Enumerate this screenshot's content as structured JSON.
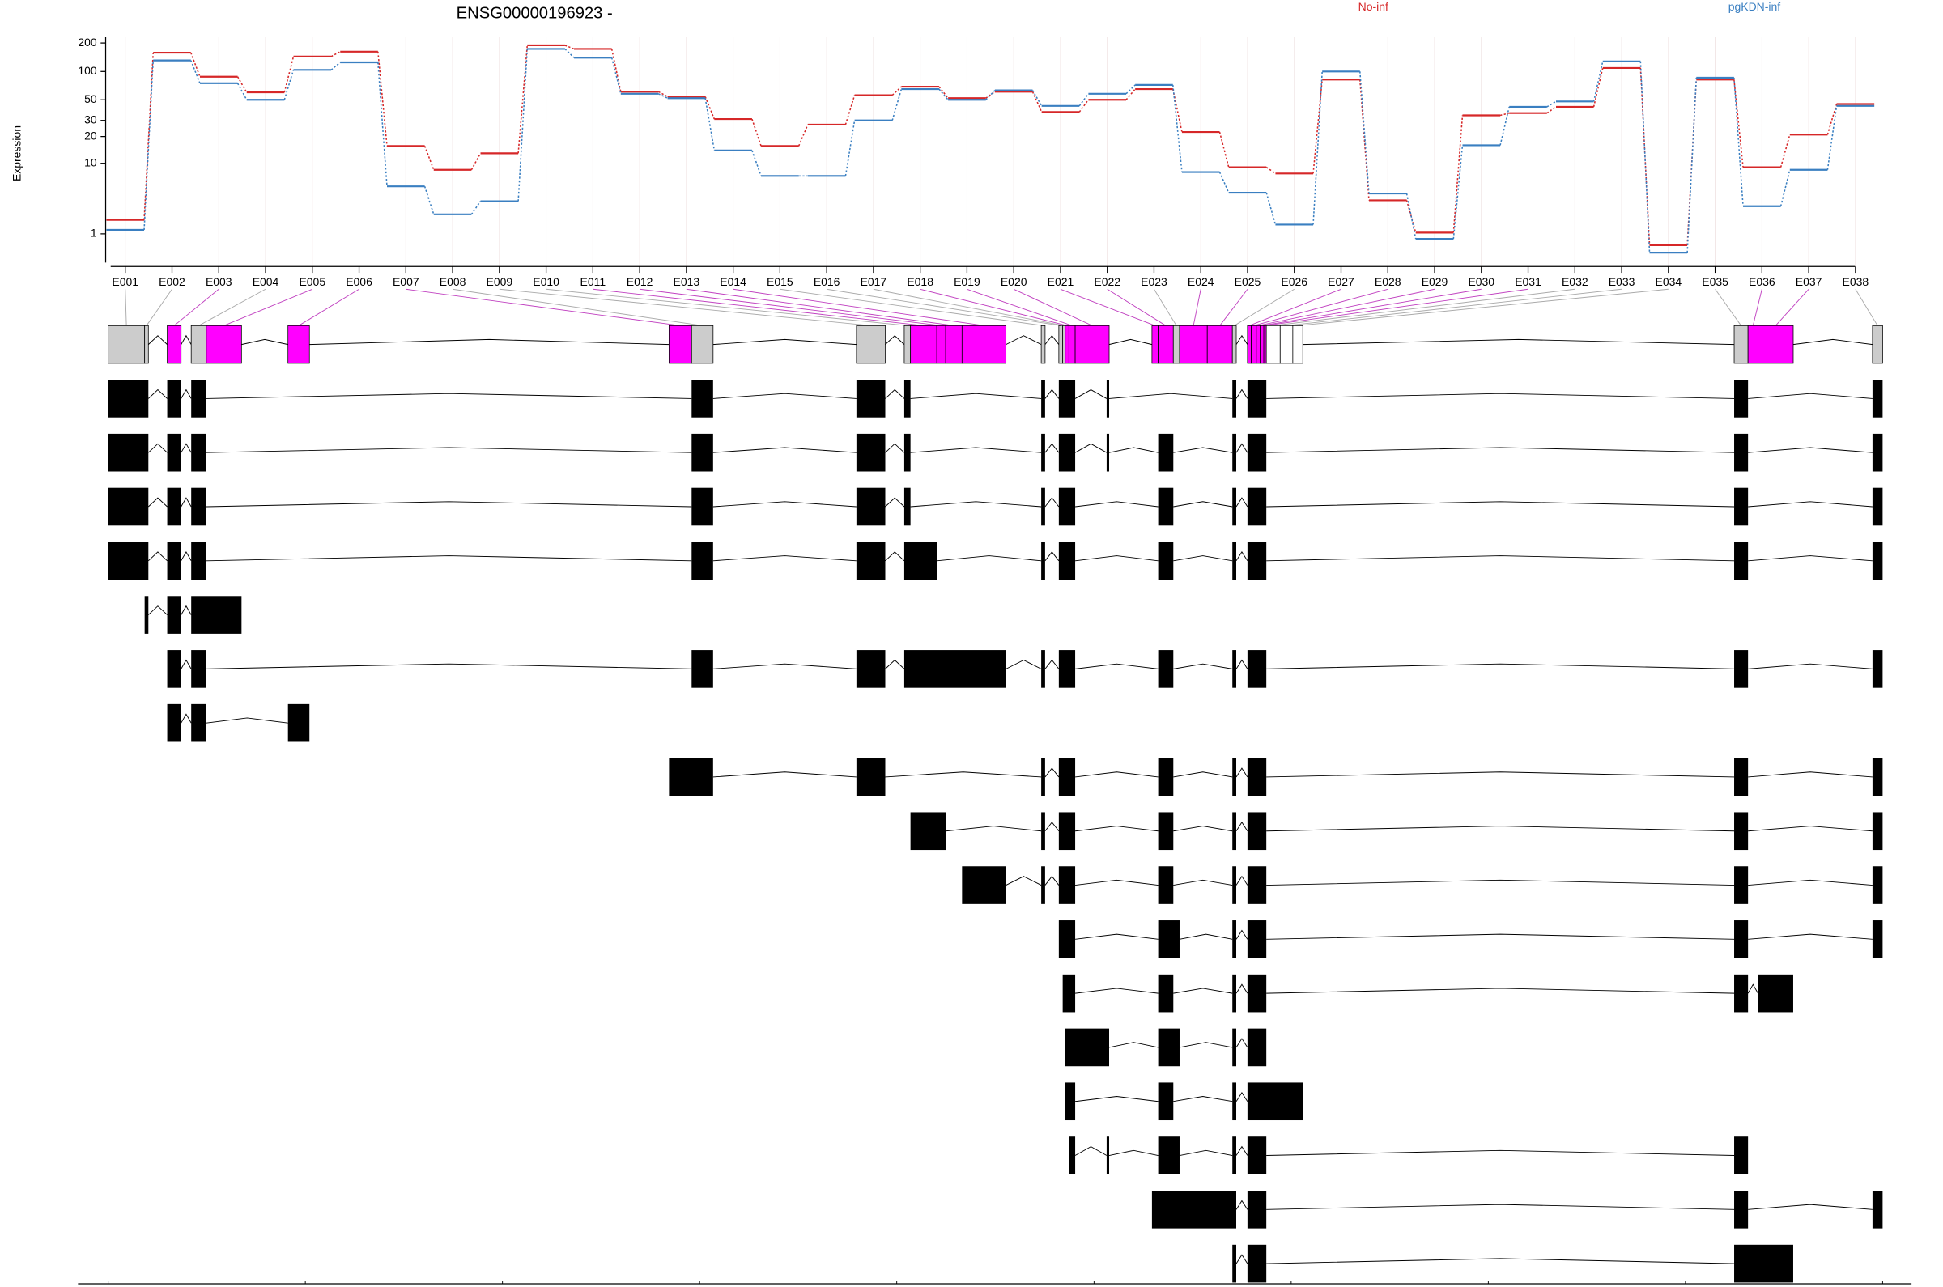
{
  "chart_data": [
    {
      "type": "line",
      "title": "ENSG00000196923 -",
      "y_label": "Expression",
      "categories": [
        "E001",
        "E002",
        "E003",
        "E004",
        "E005",
        "E006",
        "E007",
        "E008",
        "E009",
        "E010",
        "E011",
        "E012",
        "E013",
        "E014",
        "E015",
        "E016",
        "E017",
        "E018",
        "E019",
        "E020",
        "E021",
        "E022",
        "E023",
        "E024",
        "E025",
        "E026",
        "E027",
        "E028",
        "E029",
        "E030",
        "E031",
        "E032",
        "E033",
        "E034",
        "E035",
        "E036",
        "E037",
        "E038"
      ],
      "series": [
        {
          "name": "No-inf",
          "color": "#d62728",
          "values": [
            1.8,
            158,
            88,
            60,
            144,
            162,
            15.7,
            8.4,
            13,
            189,
            173,
            61,
            54,
            31,
            15.7,
            27,
            56,
            69,
            52,
            61,
            37,
            50,
            65,
            22.4,
            9,
            7.6,
            82,
            3.5,
            1.06,
            34,
            36,
            42,
            109,
            0.52,
            82,
            9,
            21,
            45
          ]
        },
        {
          "name": "pgKDN-inf",
          "color": "#3a7fc1",
          "values": [
            1.2,
            131,
            75,
            50,
            104,
            125,
            5.3,
            2.2,
            3.4,
            173,
            140,
            58,
            52,
            14,
            7.1,
            7.1,
            30,
            65,
            50,
            63,
            43,
            58,
            72,
            7.9,
            4.4,
            1.5,
            100,
            4.3,
            0.77,
            16,
            42,
            48,
            128,
            0.27,
            86,
            2.9,
            8.4,
            43
          ]
        }
      ],
      "ylim": [
        0,
        230
      ],
      "yscale": "log1p",
      "yticks": [
        1,
        10,
        20,
        30,
        50,
        100,
        200
      ],
      "grid": true
    },
    {
      "type": "gene-model",
      "bins": [
        [
          177483394,
          177483686
        ],
        [
          177483686,
          177483716
        ],
        [
          177483867,
          177483978
        ],
        [
          177484059,
          177484180
        ],
        [
          177484180,
          177484462
        ],
        [
          177484834,
          177485006
        ],
        [
          177487886,
          177488067
        ],
        [
          177488067,
          177488239
        ],
        [
          177489387,
          177489618
        ],
        [
          177489770,
          177489820
        ],
        [
          177489820,
          177490031
        ],
        [
          177490031,
          177490102
        ],
        [
          177490102,
          177490233
        ],
        [
          177490233,
          177490585
        ],
        [
          177490867,
          177490898
        ],
        [
          177491008,
          177491039
        ],
        [
          177491039,
          177491059
        ],
        [
          177491059,
          177491089
        ],
        [
          177491089,
          177491139
        ],
        [
          177491139,
          177491411
        ],
        [
          177491754,
          177491804
        ],
        [
          177491804,
          177491925
        ],
        [
          177491925,
          177491975
        ],
        [
          177491975,
          177492197
        ],
        [
          177492197,
          177492398
        ],
        [
          177492398,
          177492429
        ],
        [
          177492519,
          177492549
        ],
        [
          177492549,
          177492590
        ],
        [
          177492590,
          177492620
        ],
        [
          177492620,
          177492650
        ],
        [
          177492650,
          177492670
        ],
        [
          177492670,
          177492781
        ],
        [
          177492781,
          177492882
        ],
        [
          177492882,
          177492962
        ],
        [
          177496417,
          177496528
        ],
        [
          177496528,
          177496608
        ],
        [
          177496608,
          177496890
        ],
        [
          177497525,
          177497606
        ]
      ],
      "bin_colors": [
        "#cccccc",
        "#cccccc",
        "#ff00ff",
        "#cccccc",
        "#ff00ff",
        "#ff00ff",
        "#ff00ff",
        "#cccccc",
        "#cccccc",
        "#cccccc",
        "#ff00ff",
        "#ff00ff",
        "#ff00ff",
        "#ff00ff",
        "#cccccc",
        "#cccccc",
        "#cccccc",
        "#ff00ff",
        "#ff00ff",
        "#ff00ff",
        "#ff00ff",
        "#ff00ff",
        "#cccccc",
        "#ff00ff",
        "#ff00ff",
        "#cccccc",
        "#ff00ff",
        "#ff00ff",
        "#ff00ff",
        "#ff00ff",
        "#ff00ff",
        "#ffffff",
        "#ffffff",
        "#ffffff",
        "#cccccc",
        "#ff00ff",
        "#ff00ff",
        "#cccccc"
      ],
      "transcripts": [
        [
          [
            177483394,
            177483716
          ],
          [
            177483867,
            177483978
          ],
          [
            177484059,
            177484180
          ],
          [
            177488067,
            177488239
          ],
          [
            177489387,
            177489618
          ],
          [
            177489770,
            177489820
          ],
          [
            177490867,
            177490898
          ],
          [
            177491008,
            177491139
          ],
          [
            177491391,
            177491411
          ],
          [
            177492398,
            177492429
          ],
          [
            177492519,
            177492670
          ],
          [
            177496417,
            177496528
          ],
          [
            177497525,
            177497606
          ]
        ],
        [
          [
            177483394,
            177483716
          ],
          [
            177483867,
            177483978
          ],
          [
            177484059,
            177484180
          ],
          [
            177488067,
            177488239
          ],
          [
            177489387,
            177489618
          ],
          [
            177489770,
            177489820
          ],
          [
            177490867,
            177490898
          ],
          [
            177491008,
            177491139
          ],
          [
            177491391,
            177491411
          ],
          [
            177491804,
            177491925
          ],
          [
            177492398,
            177492429
          ],
          [
            177492519,
            177492670
          ],
          [
            177496417,
            177496528
          ],
          [
            177497525,
            177497606
          ]
        ],
        [
          [
            177483394,
            177483716
          ],
          [
            177483867,
            177483978
          ],
          [
            177484059,
            177484180
          ],
          [
            177488067,
            177488239
          ],
          [
            177489387,
            177489618
          ],
          [
            177489770,
            177489820
          ],
          [
            177490867,
            177490898
          ],
          [
            177491008,
            177491139
          ],
          [
            177491804,
            177491925
          ],
          [
            177492398,
            177492429
          ],
          [
            177492519,
            177492670
          ],
          [
            177496417,
            177496528
          ],
          [
            177497525,
            177497606
          ]
        ],
        [
          [
            177483394,
            177483716
          ],
          [
            177483867,
            177483978
          ],
          [
            177484059,
            177484180
          ],
          [
            177488067,
            177488239
          ],
          [
            177489387,
            177489618
          ],
          [
            177489770,
            177490031
          ],
          [
            177490867,
            177490898
          ],
          [
            177491008,
            177491139
          ],
          [
            177491804,
            177491925
          ],
          [
            177492398,
            177492429
          ],
          [
            177492519,
            177492670
          ],
          [
            177496417,
            177496528
          ],
          [
            177497525,
            177497606
          ]
        ],
        [
          [
            177483686,
            177483716
          ],
          [
            177483867,
            177483978
          ],
          [
            177484059,
            177484462
          ]
        ],
        [
          [
            177483867,
            177483978
          ],
          [
            177484059,
            177484180
          ],
          [
            177488067,
            177488239
          ],
          [
            177489387,
            177489618
          ],
          [
            177489770,
            177490585
          ],
          [
            177490867,
            177490898
          ],
          [
            177491008,
            177491139
          ],
          [
            177491804,
            177491925
          ],
          [
            177492398,
            177492429
          ],
          [
            177492519,
            177492670
          ],
          [
            177496417,
            177496528
          ],
          [
            177497525,
            177497606
          ]
        ],
        [
          [
            177483867,
            177483978
          ],
          [
            177484059,
            177484180
          ],
          [
            177484834,
            177485006
          ]
        ],
        [
          [
            177487886,
            177488239
          ],
          [
            177489387,
            177489618
          ],
          [
            177490867,
            177490898
          ],
          [
            177491008,
            177491139
          ],
          [
            177491804,
            177491925
          ],
          [
            177492398,
            177492429
          ],
          [
            177492519,
            177492670
          ],
          [
            177496417,
            177496528
          ],
          [
            177497525,
            177497606
          ]
        ],
        [
          [
            177489820,
            177490102
          ],
          [
            177490867,
            177490898
          ],
          [
            177491008,
            177491139
          ],
          [
            177491804,
            177491925
          ],
          [
            177492398,
            177492429
          ],
          [
            177492519,
            177492670
          ],
          [
            177496417,
            177496528
          ],
          [
            177497525,
            177497606
          ]
        ],
        [
          [
            177490233,
            177490585
          ],
          [
            177490867,
            177490898
          ],
          [
            177491008,
            177491139
          ],
          [
            177491804,
            177491925
          ],
          [
            177492398,
            177492429
          ],
          [
            177492519,
            177492670
          ],
          [
            177496417,
            177496528
          ],
          [
            177497525,
            177497606
          ]
        ],
        [
          [
            177491008,
            177491139
          ],
          [
            177491804,
            177491975
          ],
          [
            177492398,
            177492429
          ],
          [
            177492519,
            177492670
          ],
          [
            177496417,
            177496528
          ],
          [
            177497525,
            177497606
          ]
        ],
        [
          [
            177491039,
            177491139
          ],
          [
            177491804,
            177491925
          ],
          [
            177492398,
            177492429
          ],
          [
            177492519,
            177492670
          ],
          [
            177496417,
            177496528
          ],
          [
            177496608,
            177496890
          ]
        ],
        [
          [
            177491059,
            177491411
          ],
          [
            177491804,
            177491975
          ],
          [
            177492398,
            177492429
          ],
          [
            177492519,
            177492670
          ]
        ],
        [
          [
            177491059,
            177491139
          ],
          [
            177491804,
            177491925
          ],
          [
            177492398,
            177492429
          ],
          [
            177492519,
            177492962
          ]
        ],
        [
          [
            177491089,
            177491139
          ],
          [
            177491391,
            177491411
          ],
          [
            177491804,
            177491975
          ],
          [
            177492398,
            177492429
          ],
          [
            177492519,
            177492670
          ],
          [
            177496417,
            177496528
          ]
        ],
        [
          [
            177491754,
            177492429
          ],
          [
            177492519,
            177492670
          ],
          [
            177496417,
            177496528
          ],
          [
            177497525,
            177497606
          ]
        ],
        [
          [
            177492398,
            177492429
          ],
          [
            177492519,
            177492670
          ],
          [
            177496417,
            177496890
          ]
        ]
      ],
      "xlim": [
        177483394,
        177497606
      ],
      "xticks": [
        177483394,
        177484973,
        177486552,
        177488131,
        177489710,
        177491290,
        177492869,
        177494448,
        177496027,
        177497606
      ]
    }
  ]
}
